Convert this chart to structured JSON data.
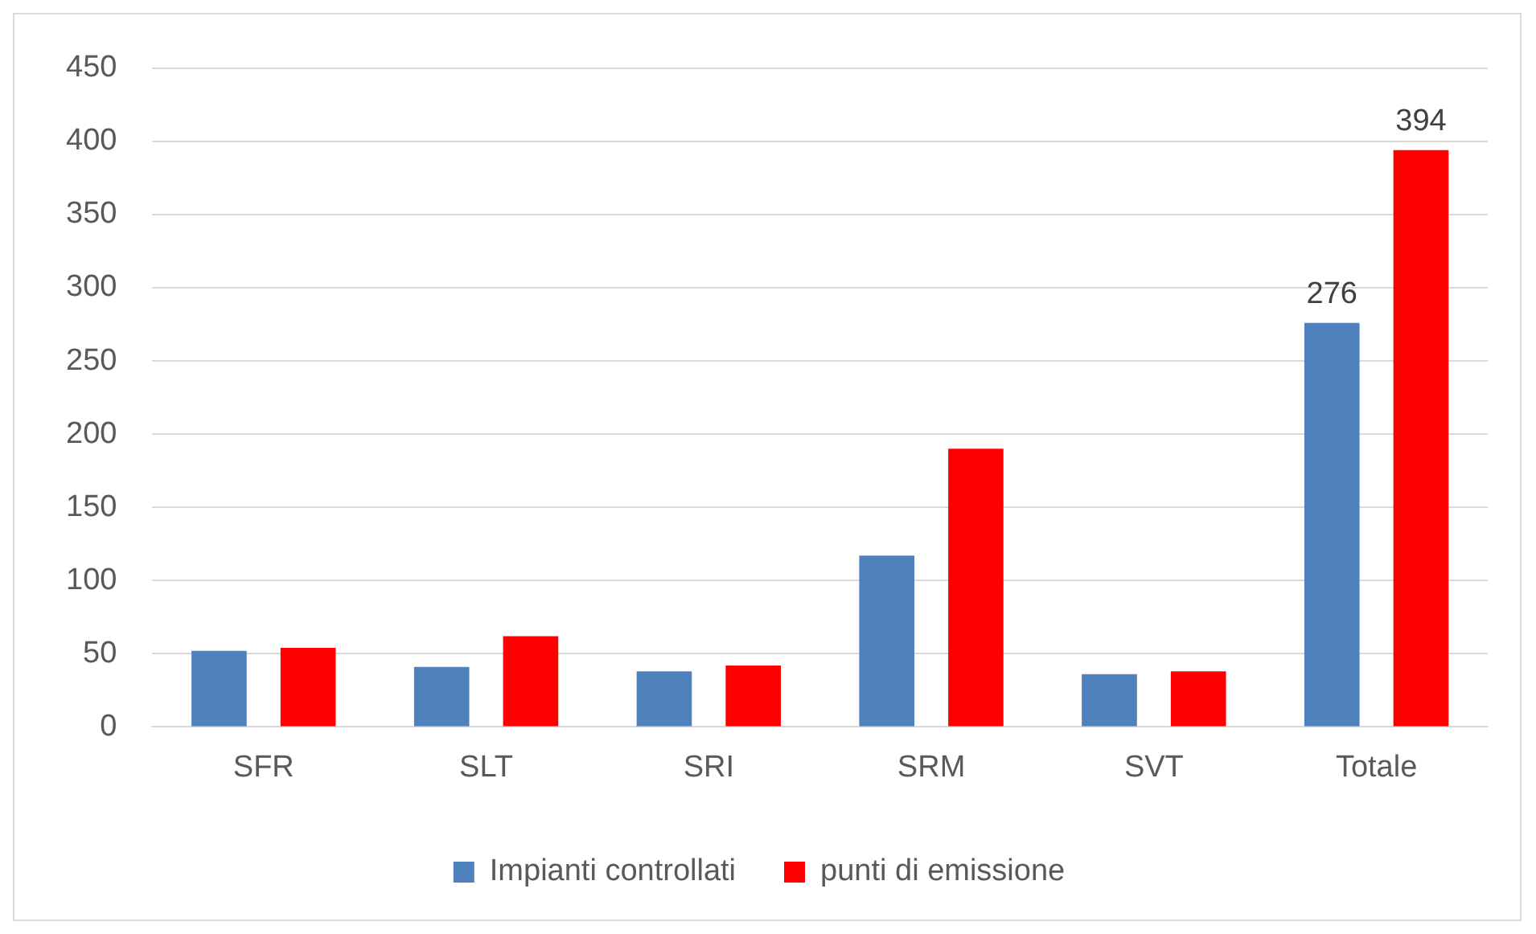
{
  "chart_data": {
    "type": "bar",
    "categories": [
      "SFR",
      "SLT",
      "SRI",
      "SRM",
      "SVT",
      "Totale"
    ],
    "series": [
      {
        "name": "Impianti controllati",
        "color": "#4f81bd",
        "values": [
          52,
          41,
          38,
          117,
          36,
          276
        ],
        "value_labels": [
          null,
          null,
          null,
          null,
          null,
          "276"
        ]
      },
      {
        "name": "punti di emissione",
        "color": "#ff0000",
        "values": [
          54,
          62,
          42,
          190,
          38,
          394
        ],
        "value_labels": [
          null,
          null,
          null,
          null,
          null,
          "394"
        ]
      }
    ],
    "ylim": [
      0,
      450
    ],
    "yticks": [
      0,
      50,
      100,
      150,
      200,
      250,
      300,
      350,
      400,
      450
    ],
    "grid": "y",
    "legend": "bottom"
  }
}
